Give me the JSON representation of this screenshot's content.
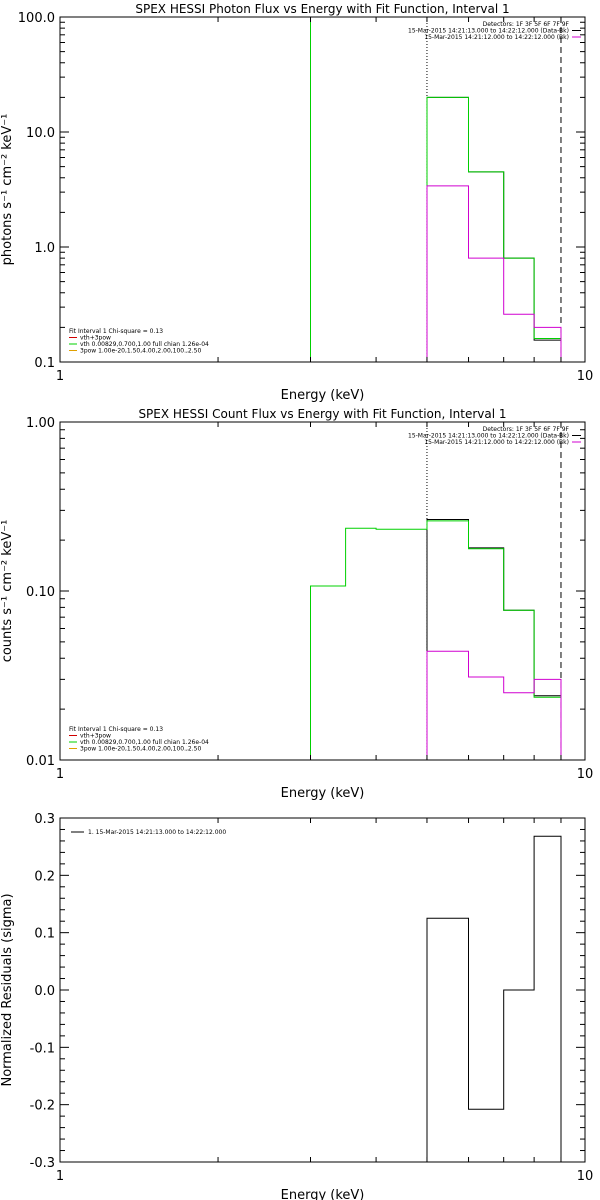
{
  "colors": {
    "background": "#ffffff",
    "axes": "#000000",
    "data": "#000000",
    "model": "#00d000",
    "background_model": "#d000d0",
    "total": "#d00000",
    "component": "#e0a000"
  },
  "chart_data": [
    {
      "type": "line",
      "title": "SPEX HESSI Photon Flux vs Energy with Fit Function, Interval 1",
      "xlabel": "Energy (keV)",
      "ylabel": "photons s⁻¹ cm⁻² keV⁻¹",
      "xscale": "log",
      "yscale": "log",
      "xlim": [
        1,
        10
      ],
      "ylim": [
        0.1,
        100
      ],
      "xticks": [
        1,
        10
      ],
      "xtick_labels": [
        "1",
        "10"
      ],
      "yticks": [
        0.1,
        1,
        10,
        100
      ],
      "ytick_labels": [
        "0.1",
        "1.0",
        "10.0",
        "100.0"
      ],
      "legend_top": {
        "placement": "top-right",
        "lines": [
          {
            "text": "Detectors: 1F 3F 5F 6F 7F 9F",
            "color": ""
          },
          {
            "text": "15-Mar-2015 14:21:13.000 to 14:22:12.000 (Data-Bk)",
            "color": "#000000"
          },
          {
            "text": "15-Mar-2015 14:21:12.000 to 14:22:12.000 (Bk)",
            "color": "#d000d0"
          }
        ]
      },
      "legend_bottom": {
        "placement": "bottom-left",
        "header": "Fit Interval 1    Chi-square = 0.13",
        "lines": [
          {
            "text": "vth+3pow",
            "color": "#d00000"
          },
          {
            "text": "vth 0.00829,0.700,1.00   full chian 1.26e-04",
            "color": "#00d000"
          },
          {
            "text": "3pow 1.00e-20,1.50,4.00,2.00,100.,2.50",
            "color": "#e0a000"
          }
        ]
      },
      "vlines": [
        {
          "x": 5.0,
          "color": "#000000",
          "style": "dotted"
        },
        {
          "x": 9.0,
          "color": "#000000",
          "style": "dashed"
        }
      ],
      "series": [
        {
          "color": "#00d000",
          "edges": [
            3.0,
            3.0
          ],
          "values": [
            100
          ]
        },
        {
          "color": "#000000",
          "edges": [
            5.0,
            6.0,
            7.0,
            8.0,
            9.0
          ],
          "values": [
            20.0,
            4.5,
            0.8,
            0.155
          ]
        },
        {
          "color": "#00d000",
          "edges": [
            5.0,
            6.0,
            7.0,
            8.0,
            9.0
          ],
          "values": [
            20.0,
            4.5,
            0.8,
            0.16
          ]
        },
        {
          "color": "#d000d0",
          "edges": [
            5.0,
            6.0,
            7.0,
            8.0,
            9.0
          ],
          "values": [
            3.4,
            0.8,
            0.26,
            0.2
          ]
        }
      ]
    },
    {
      "type": "line",
      "title": "SPEX HESSI Count Flux vs Energy with Fit Function, Interval 1",
      "xlabel": "Energy (keV)",
      "ylabel": "counts s⁻¹ cm⁻² keV⁻¹",
      "xscale": "log",
      "yscale": "log",
      "xlim": [
        1,
        10
      ],
      "ylim": [
        0.01,
        1
      ],
      "xticks": [
        1,
        10
      ],
      "xtick_labels": [
        "1",
        "10"
      ],
      "yticks": [
        0.01,
        0.1,
        1
      ],
      "ytick_labels": [
        "0.01",
        "0.10",
        "1.00"
      ],
      "legend_top": {
        "placement": "top-right",
        "lines": [
          {
            "text": "Detectors: 1F 3F 5F 6F 7F 9F",
            "color": ""
          },
          {
            "text": "15-Mar-2015 14:21:13.000 to 14:22:12.000 (Data-Bk)",
            "color": "#000000"
          },
          {
            "text": "15-Mar-2015 14:21:12.000 to 14:22:12.000 (Bk)",
            "color": "#d000d0"
          }
        ]
      },
      "legend_bottom": {
        "placement": "bottom-left",
        "header": "Fit Interval 1    Chi-square = 0.13",
        "lines": [
          {
            "text": "vth+3pow",
            "color": "#d00000"
          },
          {
            "text": "vth 0.00829,0.700,1.00   full chian 1.26e-04",
            "color": "#00d000"
          },
          {
            "text": "3pow 1.00e-20,1.50,4.00,2.00,100.,2.50",
            "color": "#e0a000"
          }
        ]
      },
      "vlines": [
        {
          "x": 5.0,
          "color": "#000000",
          "style": "dotted"
        },
        {
          "x": 9.0,
          "color": "#000000",
          "style": "dashed"
        }
      ],
      "series": [
        {
          "color": "#000000",
          "edges": [
            5.0,
            6.0,
            7.0,
            8.0,
            9.0
          ],
          "values": [
            0.265,
            0.18,
            0.077,
            0.024
          ]
        },
        {
          "color": "#00d000",
          "edges": [
            3.0,
            3.5,
            4.0,
            5.0,
            6.0,
            7.0,
            8.0,
            9.0
          ],
          "values": [
            0.107,
            0.235,
            0.232,
            0.26,
            0.178,
            0.077,
            0.0235
          ]
        },
        {
          "color": "#d000d0",
          "edges": [
            5.0,
            6.0,
            7.0,
            8.0,
            9.0
          ],
          "values": [
            0.044,
            0.031,
            0.025,
            0.03
          ]
        }
      ]
    },
    {
      "type": "line",
      "title": "",
      "xlabel": "Energy (keV)",
      "ylabel": "Normalized Residuals (sigma)",
      "xscale": "log",
      "yscale": "linear",
      "xlim": [
        1,
        10
      ],
      "ylim": [
        -0.3,
        0.3
      ],
      "xticks": [
        1,
        10
      ],
      "xtick_labels": [
        "1",
        "10"
      ],
      "yticks": [
        -0.3,
        -0.2,
        -0.1,
        0.0,
        0.1,
        0.2,
        0.3
      ],
      "ytick_labels": [
        "-0.3",
        "-0.2",
        "-0.1",
        "0.0",
        "0.1",
        "0.2",
        "0.3"
      ],
      "legend_top": {
        "placement": "top-left",
        "lines": [
          {
            "text": "1. 15-Mar-2015 14:21:13.000 to 14:22:12.000",
            "color": "#000000"
          }
        ]
      },
      "vlines": [],
      "series": [
        {
          "color": "#000000",
          "edges": [
            5.0,
            6.0,
            7.0,
            8.0,
            9.0
          ],
          "values": [
            0.125,
            -0.208,
            0.0,
            0.268
          ]
        }
      ]
    }
  ]
}
